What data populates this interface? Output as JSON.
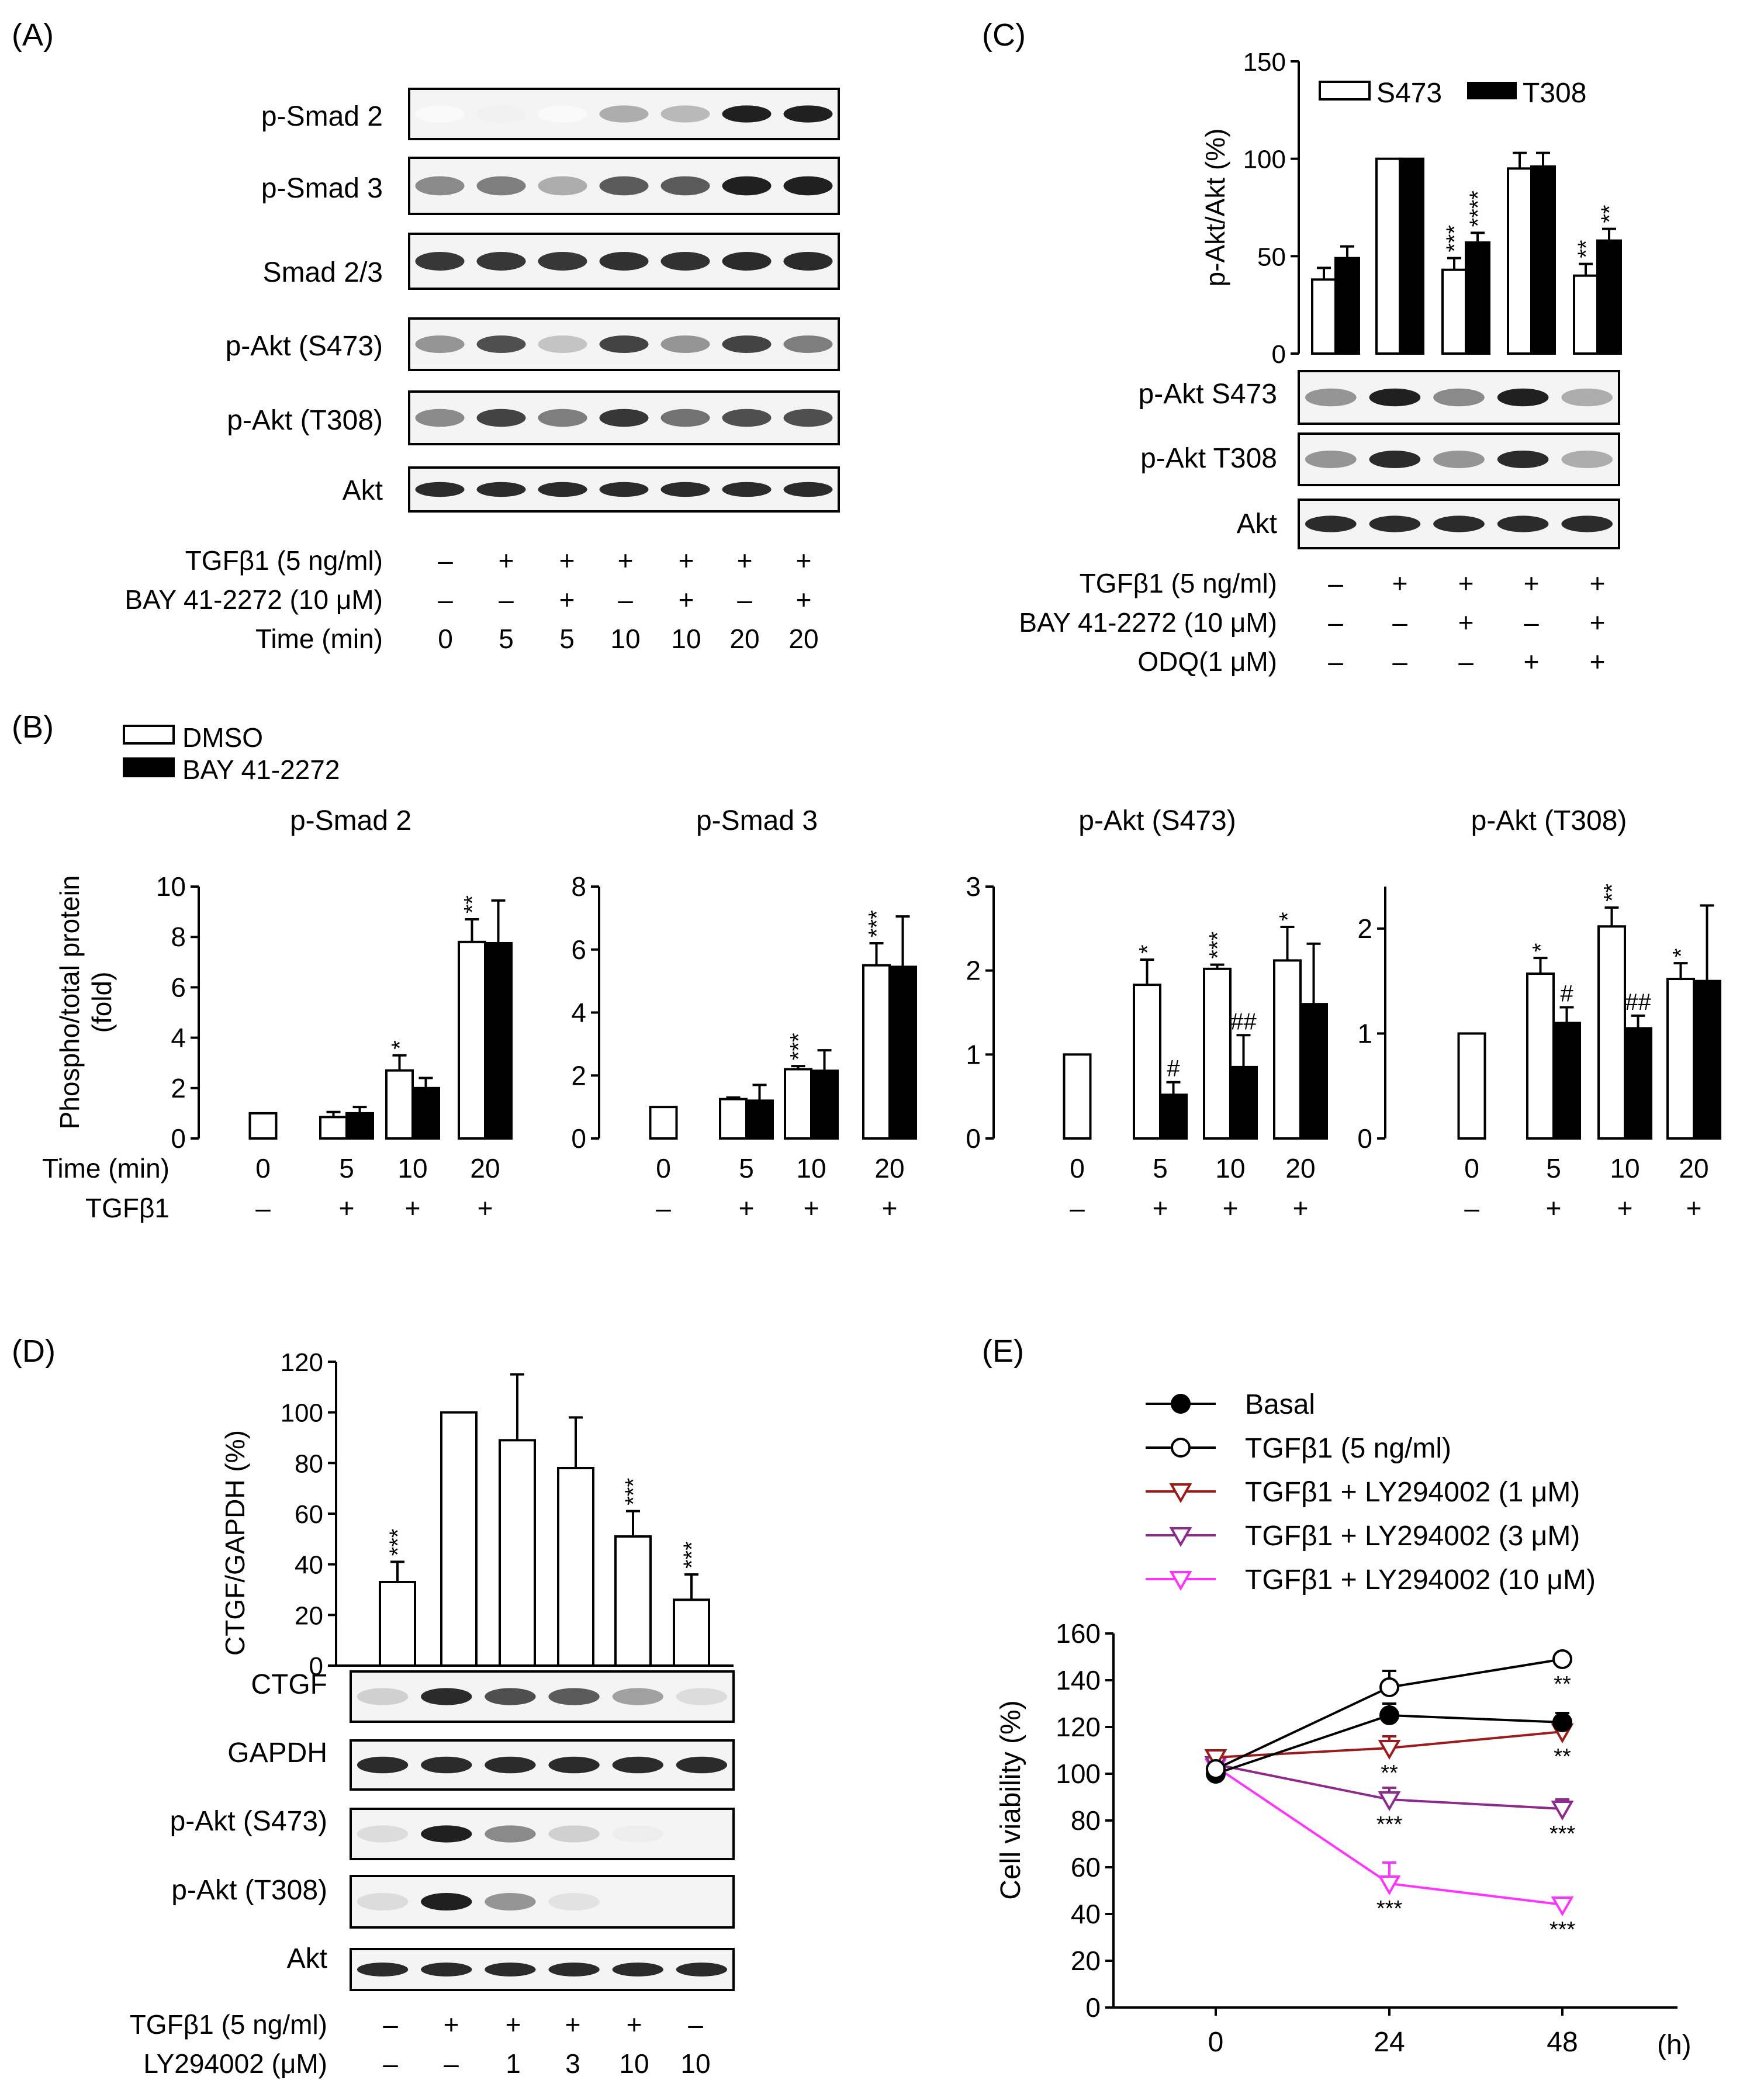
{
  "panels": {
    "A": {
      "letter": "(A)",
      "blot_labels": [
        "p-Smad 2",
        "p-Smad 3",
        "Smad 2/3",
        "p-Akt (S473)",
        "p-Akt (T308)",
        "Akt"
      ],
      "conditions": [
        {
          "label": "TGFβ1 (5 ng/ml)",
          "values": [
            "–",
            "+",
            "+",
            "+",
            "+",
            "+",
            "+"
          ]
        },
        {
          "label": "BAY 41-2272 (10 μM)",
          "values": [
            "–",
            "–",
            "+",
            "–",
            "+",
            "–",
            "+"
          ]
        },
        {
          "label": "Time (min)",
          "values": [
            "0",
            "5",
            "5",
            "10",
            "10",
            "20",
            "20"
          ]
        }
      ],
      "band_intensity": [
        [
          0.02,
          0.06,
          0.02,
          0.35,
          0.3,
          0.95,
          0.95
        ],
        [
          0.5,
          0.55,
          0.35,
          0.7,
          0.7,
          0.95,
          0.95
        ],
        [
          0.85,
          0.85,
          0.85,
          0.88,
          0.88,
          0.9,
          0.9
        ],
        [
          0.45,
          0.75,
          0.25,
          0.8,
          0.45,
          0.8,
          0.55
        ],
        [
          0.5,
          0.8,
          0.55,
          0.85,
          0.6,
          0.75,
          0.75
        ],
        [
          0.9,
          0.9,
          0.9,
          0.9,
          0.9,
          0.9,
          0.9
        ]
      ]
    },
    "B": {
      "letter": "(B)",
      "legend": [
        "DMSO",
        "BAY 41-2272"
      ],
      "ylabel": "Phospho/total protein (fold)",
      "row_labels": [
        "Time (min)",
        "TGFβ1"
      ],
      "time_ticks": [
        "0",
        "5",
        "10",
        "20"
      ],
      "tgf_ticks": [
        "–",
        "+",
        "+",
        "+"
      ]
    },
    "C": {
      "letter": "(C)",
      "blot_labels": [
        "p-Akt S473",
        "p-Akt T308",
        "Akt"
      ],
      "conditions": [
        {
          "label": "TGFβ1 (5 ng/ml)",
          "values": [
            "–",
            "+",
            "+",
            "+",
            "+"
          ]
        },
        {
          "label": "BAY 41-2272 (10 μM)",
          "values": [
            "–",
            "–",
            "+",
            "–",
            "+"
          ]
        },
        {
          "label": "ODQ(1 μM)",
          "values": [
            "–",
            "–",
            "–",
            "+",
            "+"
          ]
        }
      ],
      "band_intensity": [
        [
          0.45,
          0.95,
          0.5,
          0.95,
          0.35
        ],
        [
          0.45,
          0.9,
          0.45,
          0.9,
          0.35
        ],
        [
          0.9,
          0.9,
          0.9,
          0.9,
          0.9
        ]
      ]
    },
    "D": {
      "letter": "(D)",
      "blot_labels": [
        "CTGF",
        "GAPDH",
        "p-Akt (S473)",
        "p-Akt (T308)",
        "Akt"
      ],
      "conditions": [
        {
          "label": "TGFβ1 (5 ng/ml)",
          "values": [
            "–",
            "+",
            "+",
            "+",
            "+",
            "–"
          ]
        },
        {
          "label": "LY294002 (μM)",
          "values": [
            "–",
            "–",
            "1",
            "3",
            "10",
            "10"
          ]
        }
      ],
      "band_intensity": [
        [
          0.2,
          0.9,
          0.75,
          0.7,
          0.4,
          0.15
        ],
        [
          0.9,
          0.9,
          0.9,
          0.9,
          0.9,
          0.9
        ],
        [
          0.15,
          0.95,
          0.5,
          0.2,
          0.08,
          0.05
        ],
        [
          0.15,
          0.95,
          0.45,
          0.12,
          0.05,
          0.05
        ],
        [
          0.9,
          0.9,
          0.9,
          0.9,
          0.9,
          0.9
        ]
      ]
    },
    "E": {
      "letter": "(E)",
      "unit": "(h)"
    }
  },
  "chart_data": [
    {
      "id": "B1",
      "type": "bar",
      "title": "p-Smad 2",
      "ylabel": "Phospho/total protein (fold)",
      "categories": [
        "0",
        "5",
        "10",
        "20"
      ],
      "ylim": [
        0,
        10
      ],
      "yticks": [
        0,
        2,
        4,
        6,
        8,
        10
      ],
      "series": [
        {
          "name": "DMSO",
          "values": [
            1,
            0.85,
            2.7,
            7.8
          ],
          "errors": [
            0,
            0.2,
            0.6,
            0.9
          ]
        },
        {
          "name": "BAY 41-2272",
          "values": [
            null,
            1.0,
            2.0,
            7.75
          ],
          "errors": [
            null,
            0.25,
            0.4,
            1.7
          ]
        }
      ],
      "annotations": [
        {
          "category": "10",
          "series": "DMSO",
          "text": "*"
        },
        {
          "category": "20",
          "series": "DMSO",
          "text": "**"
        }
      ]
    },
    {
      "id": "B2",
      "type": "bar",
      "title": "p-Smad 3",
      "categories": [
        "0",
        "5",
        "10",
        "20"
      ],
      "ylim": [
        0,
        8
      ],
      "yticks": [
        0,
        2,
        4,
        6,
        8
      ],
      "series": [
        {
          "name": "DMSO",
          "values": [
            1,
            1.25,
            2.2,
            5.5
          ],
          "errors": [
            0,
            0.05,
            0.1,
            0.7
          ]
        },
        {
          "name": "BAY 41-2272",
          "values": [
            null,
            1.2,
            2.15,
            5.45
          ],
          "errors": [
            null,
            0.5,
            0.65,
            1.6
          ]
        }
      ],
      "annotations": [
        {
          "category": "10",
          "series": "DMSO",
          "text": "***"
        },
        {
          "category": "20",
          "series": "DMSO",
          "text": "***"
        }
      ]
    },
    {
      "id": "B3",
      "type": "bar",
      "title": "p-Akt (S473)",
      "categories": [
        "0",
        "5",
        "10",
        "20"
      ],
      "ylim": [
        0,
        3
      ],
      "yticks": [
        0,
        1,
        2,
        3
      ],
      "series": [
        {
          "name": "DMSO",
          "values": [
            1,
            1.83,
            2.02,
            2.12
          ],
          "errors": [
            0,
            0.3,
            0.05,
            0.4
          ]
        },
        {
          "name": "BAY 41-2272",
          "values": [
            null,
            0.52,
            0.85,
            1.6
          ],
          "errors": [
            null,
            0.15,
            0.38,
            0.72
          ]
        }
      ],
      "annotations": [
        {
          "category": "5",
          "series": "DMSO",
          "text": "*"
        },
        {
          "category": "10",
          "series": "DMSO",
          "text": "***"
        },
        {
          "category": "20",
          "series": "DMSO",
          "text": "*"
        },
        {
          "category": "5",
          "series": "BAY 41-2272",
          "text": "#"
        },
        {
          "category": "10",
          "series": "BAY 41-2272",
          "text": "##"
        }
      ]
    },
    {
      "id": "B4",
      "type": "bar",
      "title": "p-Akt (T308)",
      "categories": [
        "0",
        "5",
        "10",
        "20"
      ],
      "ylim": [
        0,
        2.4
      ],
      "yticks": [
        0,
        1,
        2
      ],
      "series": [
        {
          "name": "DMSO",
          "values": [
            1,
            1.57,
            2.02,
            1.52
          ],
          "errors": [
            0,
            0.15,
            0.18,
            0.15
          ]
        },
        {
          "name": "BAY 41-2272",
          "values": [
            null,
            1.1,
            1.05,
            1.5
          ],
          "errors": [
            null,
            0.15,
            0.12,
            0.72
          ]
        }
      ],
      "annotations": [
        {
          "category": "5",
          "series": "DMSO",
          "text": "*"
        },
        {
          "category": "10",
          "series": "DMSO",
          "text": "**"
        },
        {
          "category": "20",
          "series": "DMSO",
          "text": "*"
        },
        {
          "category": "5",
          "series": "BAY 41-2272",
          "text": "#"
        },
        {
          "category": "10",
          "series": "BAY 41-2272",
          "text": "##"
        }
      ]
    },
    {
      "id": "C",
      "type": "bar",
      "ylabel": "p-Akt/Akt (%)",
      "categories": [
        "1",
        "2",
        "3",
        "4",
        "5"
      ],
      "ylim": [
        0,
        150
      ],
      "yticks": [
        0,
        50,
        100,
        150
      ],
      "series": [
        {
          "name": "S473",
          "values": [
            38,
            100,
            43,
            95,
            40
          ],
          "errors": [
            6,
            0,
            6,
            8,
            6
          ]
        },
        {
          "name": "T308",
          "values": [
            49,
            100,
            57,
            96,
            58
          ],
          "errors": [
            6,
            0,
            5,
            7,
            6
          ]
        }
      ],
      "annotations": [
        {
          "category": "3",
          "series": "S473",
          "text": "***"
        },
        {
          "category": "3",
          "series": "T308",
          "text": "****"
        },
        {
          "category": "5",
          "series": "S473",
          "text": "**"
        },
        {
          "category": "5",
          "series": "T308",
          "text": "**"
        }
      ]
    },
    {
      "id": "D",
      "type": "bar",
      "ylabel": "CTGF/GAPDH (%)",
      "categories": [
        "1",
        "2",
        "3",
        "4",
        "5",
        "6"
      ],
      "ylim": [
        0,
        120
      ],
      "yticks": [
        0,
        20,
        40,
        60,
        80,
        100,
        120
      ],
      "series": [
        {
          "name": "CTGF",
          "values": [
            33,
            100,
            89,
            78,
            51,
            26
          ],
          "errors": [
            8,
            0,
            26,
            20,
            10,
            10
          ]
        }
      ],
      "annotations": [
        {
          "category": "1",
          "text": "***"
        },
        {
          "category": "5",
          "text": "***"
        },
        {
          "category": "6",
          "text": "***"
        }
      ]
    },
    {
      "id": "E",
      "type": "line",
      "ylabel": "Cell viability (%)",
      "x": [
        0,
        24,
        48
      ],
      "xticks": [
        "0",
        "24",
        "48"
      ],
      "ylim": [
        0,
        160
      ],
      "yticks": [
        0,
        20,
        40,
        60,
        80,
        100,
        120,
        140,
        160
      ],
      "series": [
        {
          "name": "Basal",
          "color": "#000000",
          "marker": "filled-circle",
          "values": [
            100,
            125,
            122
          ],
          "errors": [
            2,
            5,
            4
          ]
        },
        {
          "name": "TGFβ1 (5 ng/ml)",
          "color": "#000000",
          "marker": "open-circle",
          "values": [
            102,
            137,
            149
          ],
          "errors": [
            2,
            7,
            2
          ]
        },
        {
          "name": "TGFβ1 + LY294002 (1 μM)",
          "color": "#9b1b1b",
          "marker": "open-triangle-down",
          "values": [
            107,
            111,
            118
          ],
          "errors": [
            2,
            5,
            6
          ]
        },
        {
          "name": "TGFβ1 + LY294002 (3 μM)",
          "color": "#8e2a8e",
          "marker": "open-triangle-down",
          "values": [
            104,
            89,
            85
          ],
          "errors": [
            2,
            5,
            4
          ]
        },
        {
          "name": "TGFβ1 + LY294002 (10 μM)",
          "color": "#ff33ff",
          "marker": "open-triangle-down",
          "values": [
            103,
            53,
            44
          ],
          "errors": [
            2,
            9,
            3
          ]
        }
      ],
      "annotations": [
        {
          "x": 48,
          "series": "TGFβ1 (5 ng/ml)",
          "text": "**"
        },
        {
          "x": 24,
          "series": "TGFβ1 + LY294002 (1 μM)",
          "text": "**"
        },
        {
          "x": 48,
          "series": "TGFβ1 + LY294002 (1 μM)",
          "text": "**"
        },
        {
          "x": 24,
          "series": "TGFβ1 + LY294002 (3 μM)",
          "text": "***"
        },
        {
          "x": 48,
          "series": "TGFβ1 + LY294002 (3 μM)",
          "text": "***"
        },
        {
          "x": 24,
          "series": "TGFβ1 + LY294002 (10 μM)",
          "text": "***"
        },
        {
          "x": 48,
          "series": "TGFβ1 + LY294002 (10 μM)",
          "text": "***"
        }
      ]
    }
  ]
}
